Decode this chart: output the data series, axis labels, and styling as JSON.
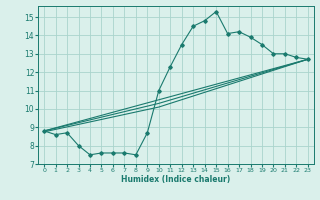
{
  "xlabel": "Humidex (Indice chaleur)",
  "bg_color": "#daf0eb",
  "grid_color": "#aad4cc",
  "line_color": "#1a7a6e",
  "xlim": [
    -0.5,
    23.5
  ],
  "ylim": [
    7,
    15.6
  ],
  "xticks": [
    0,
    1,
    2,
    3,
    4,
    5,
    6,
    7,
    8,
    9,
    10,
    11,
    12,
    13,
    14,
    15,
    16,
    17,
    18,
    19,
    20,
    21,
    22,
    23
  ],
  "yticks": [
    7,
    8,
    9,
    10,
    11,
    12,
    13,
    14,
    15
  ],
  "curve1_x": [
    0,
    1,
    2,
    3,
    4,
    5,
    6,
    7,
    8,
    9,
    10,
    11,
    12,
    13,
    14,
    15,
    16,
    17,
    18,
    19,
    20,
    21,
    22,
    23
  ],
  "curve1_y": [
    8.8,
    8.6,
    8.7,
    8.0,
    7.5,
    7.6,
    7.6,
    7.6,
    7.5,
    8.7,
    11.0,
    12.3,
    13.5,
    14.5,
    14.8,
    15.3,
    14.1,
    14.2,
    13.9,
    13.5,
    13.0,
    13.0,
    12.8,
    12.7
  ],
  "line1_x": [
    0,
    23
  ],
  "line1_y": [
    8.8,
    12.7
  ],
  "line2_x": [
    0,
    10,
    23
  ],
  "line2_y": [
    8.8,
    10.3,
    12.7
  ],
  "line3_x": [
    0,
    10,
    23
  ],
  "line3_y": [
    8.75,
    10.1,
    12.7
  ]
}
